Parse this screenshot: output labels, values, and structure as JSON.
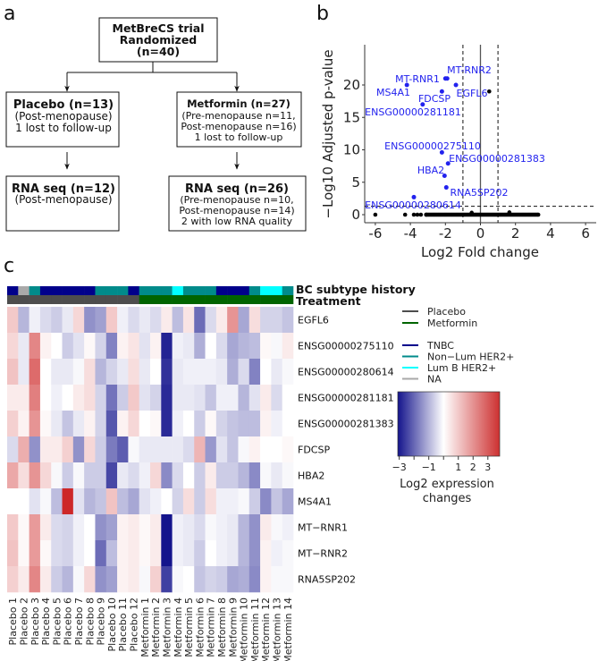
{
  "panels": {
    "a": "a",
    "b": "b",
    "c": "c"
  },
  "flowchart": {
    "top": [
      "MetBreCS trial",
      "Randomized",
      "(n=40)"
    ],
    "placebo": {
      "title": "Placebo (n=13)",
      "lines": [
        "(Post-menopause)",
        "1 lost to follow-up"
      ]
    },
    "metformin": {
      "title": "Metformin (n=27)",
      "lines": [
        "(Pre-menopause n=11,",
        "Post-menopause n=16)",
        "1 lost to follow-up"
      ]
    },
    "rna_placebo": {
      "title": "RNA seq (n=12)",
      "lines": [
        "(Post-menopause)"
      ]
    },
    "rna_metformin": {
      "title": "RNA seq (n=26)",
      "lines": [
        "(Pre-menopause n=10,",
        "Post-menopause n=14)",
        "2 with low RNA quality"
      ]
    }
  },
  "chart_data": [
    {
      "type": "scatter",
      "title": "",
      "xlabel": "Log2 Fold change",
      "ylabel": "−Log10 Adjusted p-value",
      "xlim": [
        -6.5,
        6.5
      ],
      "ylim": [
        -0.8,
        26
      ],
      "xticks": [
        -6,
        -4,
        -2,
        0,
        2,
        4,
        6
      ],
      "yticks": [
        0,
        5,
        10,
        15,
        20
      ],
      "thresholds": {
        "log2fc": [
          -1,
          1
        ],
        "neg_log10_padj": 1.3
      },
      "significant": [
        {
          "label": "MT-RNR1",
          "x": -2.0,
          "y": 21
        },
        {
          "label": "MT-RNR2",
          "x": -1.9,
          "y": 21
        },
        {
          "label": "MS4A1",
          "x": -4.2,
          "y": 20
        },
        {
          "label": "EGFL6",
          "x": -1.4,
          "y": 20
        },
        {
          "label": "FDCSP",
          "x": -2.2,
          "y": 19
        },
        {
          "label": "ENSG00000281181",
          "x": -3.3,
          "y": 17
        },
        {
          "label": "ENSG00000275110",
          "x": -2.2,
          "y": 9.6
        },
        {
          "label": "ENSG00000281383",
          "x": -1.85,
          "y": 7.9
        },
        {
          "label": "HBA2",
          "x": -2.05,
          "y": 6
        },
        {
          "label": "RNA5SP202",
          "x": -1.95,
          "y": 4.2
        },
        {
          "label": "ENSG00000280614",
          "x": -3.8,
          "y": 2.7
        }
      ],
      "nonsignificant": [
        [
          0.5,
          19
        ],
        [
          -6,
          0
        ],
        [
          -4.3,
          0
        ],
        [
          -3.8,
          0
        ],
        [
          -3.6,
          0
        ],
        [
          -3.4,
          0
        ],
        [
          -3.1,
          0
        ],
        [
          -0.5,
          0.3
        ],
        [
          1.65,
          0.35
        ],
        [
          3.3,
          0
        ]
      ],
      "nonsignificant_range_y0": [
        -3.1,
        3.3
      ],
      "colors": {
        "significant": "#2222ee",
        "nonsignificant": "#000000"
      }
    },
    {
      "type": "heatmap",
      "rows": [
        "EGFL6",
        "ENSG00000275110",
        "ENSG00000280614",
        "ENSG00000281181",
        "ENSG00000281383",
        "FDCSP",
        "HBA2",
        "MS4A1",
        "MT−RNR1",
        "MT−RNR2",
        "RNA5SP202"
      ],
      "columns": [
        "Placebo 1",
        "Placebo 2",
        "Placebo 3",
        "Placebo 4",
        "Placebo 5",
        "Placebo 6",
        "Placebo 7",
        "Placebo 8",
        "Placebo 9",
        "Placebo 10",
        "Placebo 11",
        "Placebo 12",
        "Metformin 1",
        "Metformin 2",
        "Metformin 3",
        "Metformin 4",
        "Metformin 5",
        "Metformin 6",
        "Metformin 7",
        "Metformin 8",
        "Metformin 9",
        "Metformin 10",
        "Metformin 11",
        "Metformin 12",
        "Metformin 13",
        "Metformin 14"
      ],
      "values": [
        [
          0.8,
          -1,
          -0.2,
          -0.5,
          -0.7,
          -0.3,
          0.6,
          -1.5,
          -1.3,
          0.8,
          -0.2,
          -0.5,
          -0.3,
          -0.5,
          0.3,
          -0.9,
          0.4,
          -2,
          -0.5,
          0.3,
          1.6,
          -1.2,
          0.5,
          -0.6,
          -0.6,
          -0.8
        ],
        [
          0.6,
          -0.3,
          1.8,
          0.2,
          0,
          -0.7,
          -0.4,
          0.1,
          -0.6,
          -1.7,
          0.2,
          0.4,
          -0.4,
          0.2,
          -3,
          -0.2,
          -0.3,
          -1.1,
          0,
          -0.5,
          -1.2,
          -1,
          -0.9,
          0.1,
          -0.1,
          0.3
        ],
        [
          0.9,
          -0.3,
          2.2,
          0,
          -0.3,
          -0.3,
          -0.1,
          0.5,
          -1,
          -0.6,
          -0.3,
          0.5,
          -0.3,
          0,
          -2.8,
          -0.3,
          -0.2,
          -0.2,
          -0.2,
          -0.3,
          -1.1,
          -0.5,
          -1.7,
          0,
          -0.3,
          -0.1
        ],
        [
          0.3,
          0.3,
          1.9,
          0,
          -0.2,
          0,
          0.3,
          0.5,
          -0.6,
          -1.9,
          -0.7,
          0.8,
          -0.4,
          -0.6,
          -2.9,
          -0.3,
          -0.3,
          -0.4,
          -0.8,
          -0.2,
          -0.2,
          -1,
          -0.4,
          0.3,
          -0.5,
          0
        ],
        [
          0.7,
          0.2,
          1.6,
          0.1,
          -0.3,
          -0.8,
          -0.3,
          0.2,
          -0.6,
          -2.3,
          0.2,
          0.6,
          0,
          0.1,
          -2.9,
          -0.2,
          0,
          -0.7,
          0.1,
          -0.6,
          -0.8,
          -0.9,
          -0.9,
          0.2,
          -0.2,
          0
        ],
        [
          -0.5,
          1.2,
          -1.5,
          0.3,
          0.3,
          0.7,
          -1.5,
          0.6,
          -0.7,
          -1.8,
          -2.2,
          -0.1,
          -0.3,
          -0.3,
          -0.3,
          -0.3,
          -0.5,
          1.1,
          -1.4,
          -0.4,
          -0.8,
          -0.1,
          0.2,
          0,
          0,
          0.1
        ],
        [
          1.3,
          0.5,
          1.6,
          0.6,
          -0.1,
          -0.7,
          -0.1,
          -0.7,
          -0.7,
          -2.5,
          -0.3,
          -0.5,
          -0.2,
          0.6,
          -1.6,
          -0.5,
          0,
          -0.7,
          0.3,
          -0.7,
          -0.7,
          -1,
          -1.6,
          -0.1,
          -0.3,
          -0.1
        ],
        [
          0,
          0,
          -0.4,
          -0.1,
          -0.9,
          3.2,
          -0.4,
          -1,
          -0.8,
          0.9,
          -0.9,
          -1.2,
          -0.4,
          -0.2,
          0,
          -0.6,
          0.5,
          -0.7,
          0.5,
          -0.2,
          -0.2,
          -0.1,
          -0.7,
          -1.6,
          -0.8,
          -1.2
        ],
        [
          0.8,
          0.1,
          1.5,
          0.3,
          -0.5,
          -0.6,
          -0.2,
          0,
          -1.5,
          -1.3,
          0.2,
          0.3,
          0.1,
          0.3,
          -3.2,
          -0.2,
          -0.3,
          -0.5,
          -0.1,
          -0.2,
          -0.3,
          -1,
          -1.5,
          0.3,
          -0.1,
          -0.2
        ],
        [
          0.9,
          0.1,
          1.5,
          0.1,
          -0.5,
          -0.6,
          -0.2,
          0,
          -2,
          -0.9,
          0.2,
          0.3,
          0.1,
          0.3,
          -3.2,
          -0.2,
          -0.3,
          -0.7,
          0,
          -0.2,
          -0.3,
          -1,
          -1.5,
          0.2,
          -0.2,
          -0.1
        ],
        [
          0.7,
          0.3,
          1.8,
          0.3,
          -0.7,
          -1,
          -0.1,
          0.6,
          -1.5,
          -1.3,
          0.2,
          0.3,
          -0.1,
          0.7,
          -2.6,
          -0.1,
          0,
          -0.8,
          -0.6,
          -0.7,
          -1.2,
          -1.1,
          -1.6,
          0.2,
          -0.1,
          -0.1
        ]
      ],
      "annotations": {
        "subtype_title": "BC subtype history",
        "treatment_title": "Treatment",
        "subtype": [
          "TNBC",
          "NA",
          "Non−Lum HER2+",
          "TNBC",
          "TNBC",
          "TNBC",
          "TNBC",
          "TNBC",
          "Non−Lum HER2+",
          "Non−Lum HER2+",
          "Non−Lum HER2+",
          "TNBC",
          "Non−Lum HER2+",
          "Non−Lum HER2+",
          "Non−Lum HER2+",
          "Lum B HER2+",
          "Non−Lum HER2+",
          "Non−Lum HER2+",
          "Non−Lum HER2+",
          "TNBC",
          "TNBC",
          "TNBC",
          "Non−Lum HER2+",
          "Lum B HER2+",
          "Lum B HER2+",
          "Non−Lum HER2+"
        ],
        "treatment": [
          "Placebo",
          "Placebo",
          "Placebo",
          "Placebo",
          "Placebo",
          "Placebo",
          "Placebo",
          "Placebo",
          "Placebo",
          "Placebo",
          "Placebo",
          "Placebo",
          "Metformin",
          "Metformin",
          "Metformin",
          "Metformin",
          "Metformin",
          "Metformin",
          "Metformin",
          "Metformin",
          "Metformin",
          "Metformin",
          "Metformin",
          "Metformin",
          "Metformin",
          "Metformin"
        ]
      },
      "legend": {
        "treatment": [
          {
            "label": "Placebo",
            "color": "#4d4d4d"
          },
          {
            "label": "Metformin",
            "color": "#006400"
          }
        ],
        "subtype": [
          {
            "label": "TNBC",
            "color": "#00008b"
          },
          {
            "label": "Non−Lum HER2+",
            "color": "#008b8b"
          },
          {
            "label": "Lum B HER2+",
            "color": "#00ffff"
          },
          {
            "label": "NA",
            "color": "#a9a9a9"
          }
        ]
      },
      "colorbar": {
        "title": [
          "Log2 expression",
          "changes"
        ],
        "range": [
          -3.1,
          3.8
        ],
        "ticks": [
          -3,
          -2,
          -1,
          0,
          1,
          2,
          3
        ],
        "tick_labels": [
          "−3",
          "",
          "−1",
          "",
          "1",
          "2",
          "3"
        ],
        "low_color": "#14148c",
        "mid_color": "#ffffff",
        "high_color": "#cd2828"
      }
    }
  ]
}
